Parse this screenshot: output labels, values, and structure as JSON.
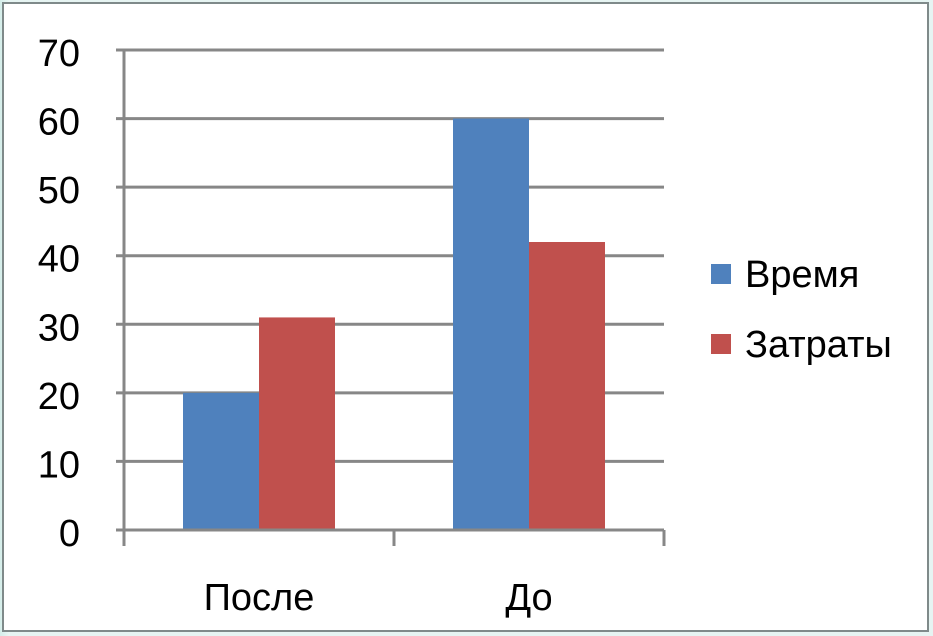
{
  "chart_data": {
    "type": "bar",
    "categories": [
      "После",
      "До"
    ],
    "series": [
      {
        "name": "Время",
        "values": [
          20,
          60
        ],
        "color": "#4f81bd"
      },
      {
        "name": "Затраты",
        "values": [
          31,
          42
        ],
        "color": "#c0504d"
      }
    ],
    "y_ticks": [
      "0",
      "10",
      "20",
      "30",
      "40",
      "50",
      "60",
      "70"
    ],
    "ylim": [
      0,
      70
    ],
    "grid": true,
    "legend_position": "right"
  }
}
